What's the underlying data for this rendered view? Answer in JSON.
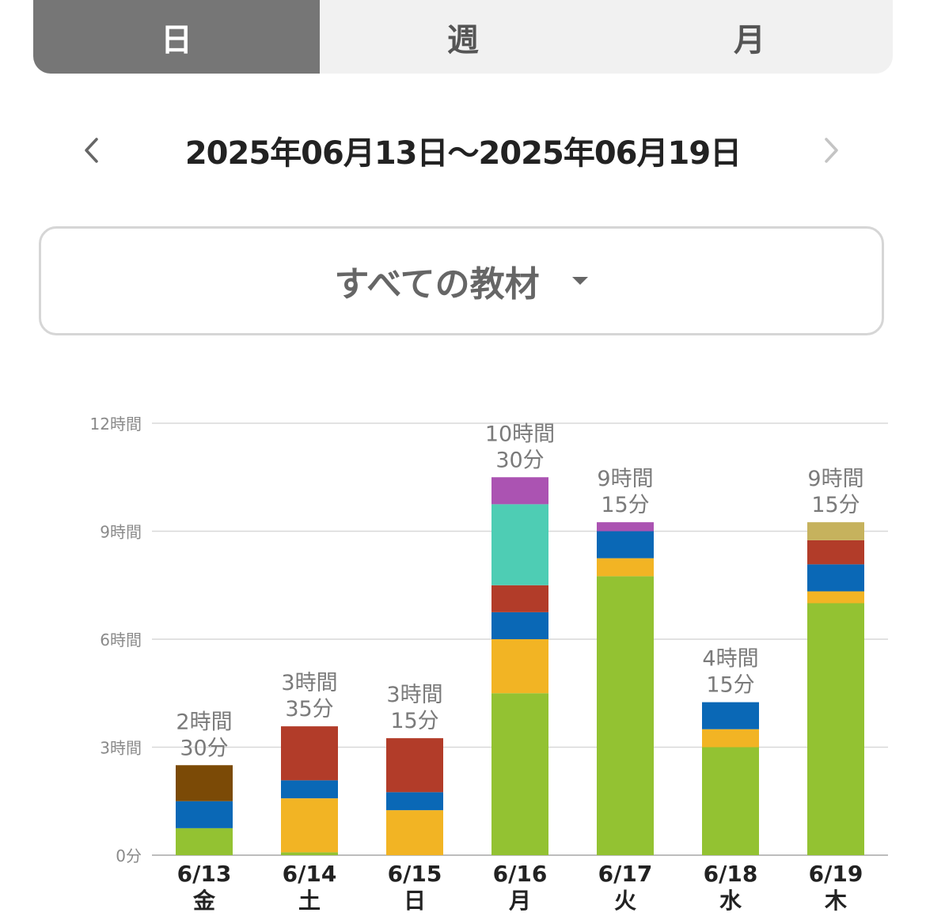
{
  "tabs": [
    {
      "label": "日",
      "active": true
    },
    {
      "label": "週",
      "active": false
    },
    {
      "label": "月",
      "active": false
    }
  ],
  "date_nav": {
    "range": "2025年06月13日〜2025年06月19日",
    "prev_icon": "chevron-left-icon",
    "next_icon": "chevron-right-icon"
  },
  "material_select": {
    "label": "すべての教材",
    "icon": "caret-down-icon"
  },
  "colors": {
    "tab_active_bg": "#767676",
    "tab_bg": "#f1f1f1",
    "material_a": "#93c232",
    "material_b": "#f2b424",
    "material_c": "#0a68b6",
    "material_d": "#b23c29",
    "material_e": "#4ecdb4",
    "material_f": "#ab53b2",
    "material_g": "#c6b25d",
    "material_h": "#7b4a06"
  },
  "chart_data": {
    "type": "bar",
    "stacked": true,
    "categories": [
      "6/13",
      "6/14",
      "6/15",
      "6/16",
      "6/17",
      "6/18",
      "6/19"
    ],
    "weekdays": [
      "金",
      "土",
      "日",
      "月",
      "火",
      "水",
      "木"
    ],
    "totals": [
      "2時間\n30分",
      "3時間\n35分",
      "3時間\n15分",
      "10時間\n30分",
      "9時間\n15分",
      "4時間\n15分",
      "9時間\n15分"
    ],
    "yticks": [
      {
        "value": 0,
        "label": "0分"
      },
      {
        "value": 3,
        "label": "3時間"
      },
      {
        "value": 6,
        "label": "6時間"
      },
      {
        "value": 9,
        "label": "9時間"
      },
      {
        "value": 12,
        "label": "12時間"
      }
    ],
    "ylim": [
      0,
      12
    ],
    "grid": true,
    "series": [
      {
        "color": "#93c232",
        "values": [
          0.75,
          0.08,
          0,
          4.5,
          7.75,
          3.0,
          7.0
        ]
      },
      {
        "color": "#f2b424",
        "values": [
          0,
          1.5,
          1.25,
          1.5,
          0.5,
          0.5,
          0.33
        ]
      },
      {
        "color": "#0a68b6",
        "values": [
          0.75,
          0.5,
          0.5,
          0.75,
          0.75,
          0.75,
          0.75
        ]
      },
      {
        "color": "#b23c29",
        "values": [
          0,
          1.5,
          1.5,
          0.75,
          0,
          0,
          0.67
        ]
      },
      {
        "color": "#4ecdb4",
        "values": [
          0,
          0,
          0,
          2.25,
          0,
          0,
          0
        ]
      },
      {
        "color": "#ab53b2",
        "values": [
          0,
          0,
          0,
          0.75,
          0.25,
          0,
          0
        ]
      },
      {
        "color": "#c6b25d",
        "values": [
          0,
          0,
          0,
          0,
          0,
          0,
          0.5
        ]
      },
      {
        "color": "#7b4a06",
        "values": [
          1.0,
          0,
          0,
          0,
          0,
          0,
          0
        ]
      }
    ]
  }
}
